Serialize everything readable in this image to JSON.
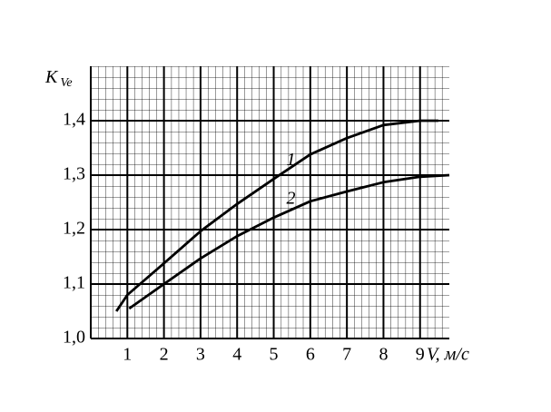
{
  "chart_data": {
    "type": "line",
    "y_label": "K",
    "y_label_sub": "Ve",
    "x_label": "V, м/с",
    "series": [
      {
        "name": "1",
        "color": "#000000",
        "x": [
          0.7,
          1,
          2,
          3,
          4,
          5,
          6,
          7,
          8,
          9,
          9.5
        ],
        "values": [
          1.05,
          1.08,
          1.138,
          1.197,
          1.247,
          1.293,
          1.338,
          1.368,
          1.392,
          1.4,
          1.4
        ]
      },
      {
        "name": "2",
        "color": "#000000",
        "x": [
          1.05,
          2,
          3,
          4,
          5,
          6,
          7,
          8,
          9,
          9.8
        ],
        "values": [
          1.055,
          1.1,
          1.147,
          1.188,
          1.222,
          1.252,
          1.27,
          1.287,
          1.297,
          1.3
        ]
      }
    ],
    "xlim": [
      0,
      9.8
    ],
    "ylim": [
      1.0,
      1.5
    ],
    "xticks": [
      1,
      2,
      3,
      4,
      5,
      6,
      7,
      8,
      9
    ],
    "yticks": [
      {
        "value": 1.0,
        "label": "1,0"
      },
      {
        "value": 1.1,
        "label": "1,1"
      },
      {
        "value": 1.2,
        "label": "1,2"
      },
      {
        "value": 1.3,
        "label": "1,3"
      },
      {
        "value": 1.4,
        "label": "1,4"
      }
    ],
    "grid": true
  }
}
